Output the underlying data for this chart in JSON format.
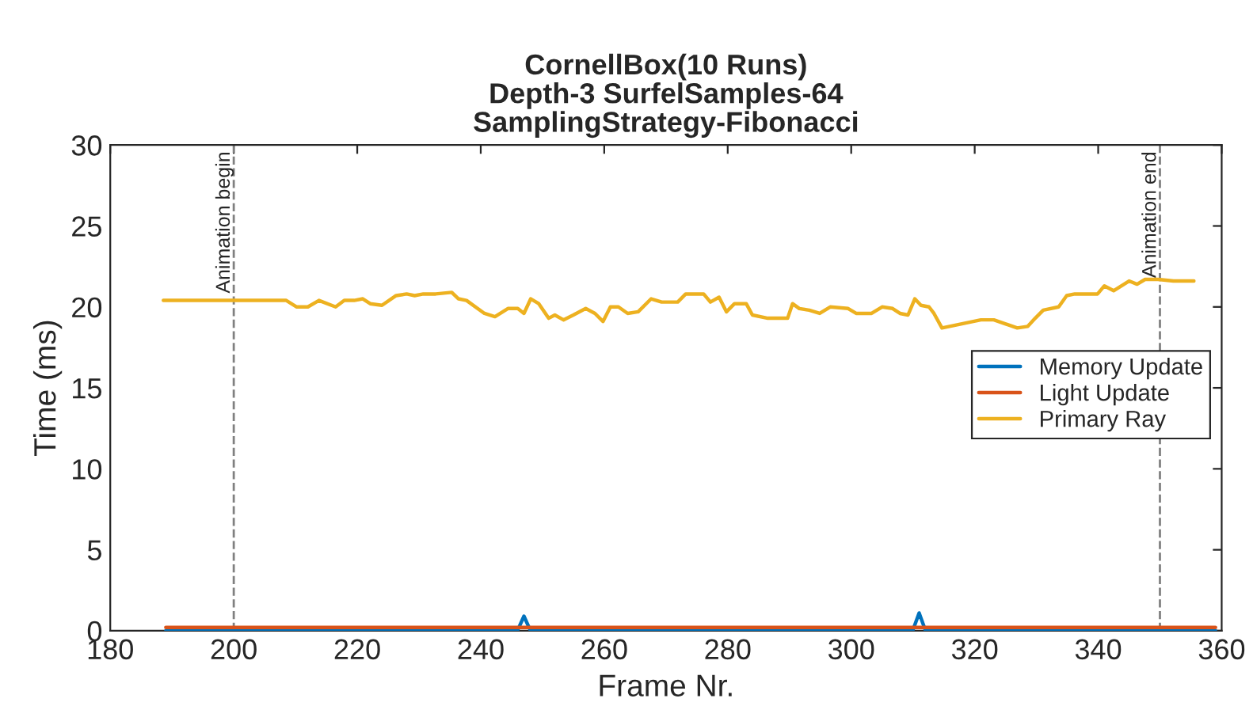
{
  "chart_data": {
    "type": "line",
    "title": "CornellBox(10 Runs)\nDepth-3 SurfelSamples-64\nSamplingStrategy-Fibonacci",
    "xlabel": "Frame Nr.",
    "ylabel": "Time (ms)",
    "xlim": [
      180,
      360
    ],
    "xticks": [
      180,
      200,
      220,
      240,
      260,
      280,
      300,
      320,
      340,
      360
    ],
    "ylim": [
      0,
      30
    ],
    "yticks": [
      0,
      5,
      10,
      15,
      20,
      25,
      30
    ],
    "grid": false,
    "legend": "right",
    "line_style": "solid",
    "marker": "none",
    "ref_lines": [
      {
        "axis": "x",
        "value": 200,
        "label": "Animation begin",
        "color": "#808080",
        "line_style": "dashed"
      },
      {
        "axis": "x",
        "value": 350,
        "label": "Animation end",
        "color": "#808080",
        "line_style": "dashed"
      }
    ],
    "series": [
      {
        "name": "Memory Update",
        "color": "#0072bd",
        "x": [
          189,
          200,
          201,
          246,
          247,
          248,
          310,
          311,
          312,
          350,
          351,
          359
        ],
        "values": [
          0,
          0,
          0.05,
          0.05,
          0.9,
          0.05,
          0.05,
          1.1,
          0.05,
          0.05,
          0,
          0
        ]
      },
      {
        "name": "Light Update",
        "color": "#d95319",
        "x": [
          189,
          359
        ],
        "values": [
          0.2,
          0.2
        ]
      },
      {
        "name": "Primary Ray",
        "color": "#edb120",
        "x": [
          188.6,
          205.2,
          207,
          208.5,
          210.2,
          212,
          213.8,
          216.5,
          217.9,
          219.5,
          220.9,
          222.1,
          224,
          226.3,
          228,
          229.3,
          230.7,
          232.7,
          235.3,
          236.4,
          237.7,
          240.6,
          242.3,
          244.4,
          246,
          247,
          248.1,
          249.4,
          251,
          252,
          253.4,
          255,
          257,
          258.5,
          259.8,
          261,
          262.3,
          263.8,
          265.5,
          267.6,
          269.3,
          271.9,
          273.2,
          276.1,
          277.2,
          278.6,
          279.8,
          281.1,
          283,
          284,
          286.5,
          289.7,
          290.5,
          291.6,
          293.2,
          294.9,
          296.6,
          299.5,
          300.8,
          303.3,
          305,
          306.7,
          307.9,
          309.2,
          310.3,
          311.3,
          312.6,
          313.4,
          314.7,
          321,
          323.1,
          326.9,
          328.6,
          329.8,
          331.1,
          333.6,
          334.9,
          336.2,
          339.9,
          341,
          342.5,
          345,
          346.3,
          347.6,
          349.7,
          352.2,
          355.5
        ],
        "values": [
          20.4,
          20.4,
          20.4,
          20.4,
          20.0,
          20.0,
          20.4,
          20.0,
          20.4,
          20.4,
          20.5,
          20.2,
          20.1,
          20.7,
          20.8,
          20.7,
          20.8,
          20.8,
          20.9,
          20.5,
          20.4,
          19.6,
          19.4,
          19.9,
          19.9,
          19.6,
          20.5,
          20.2,
          19.3,
          19.5,
          19.2,
          19.5,
          19.9,
          19.6,
          19.1,
          20.0,
          20.0,
          19.6,
          19.7,
          20.5,
          20.3,
          20.3,
          20.8,
          20.8,
          20.3,
          20.6,
          19.7,
          20.2,
          20.2,
          19.5,
          19.3,
          19.3,
          20.2,
          19.9,
          19.8,
          19.6,
          20.0,
          19.9,
          19.6,
          19.6,
          20.0,
          19.9,
          19.6,
          19.5,
          20.5,
          20.1,
          20.0,
          19.6,
          18.7,
          19.2,
          19.2,
          18.7,
          18.8,
          19.3,
          19.8,
          20.0,
          20.7,
          20.8,
          20.8,
          21.3,
          21.0,
          21.6,
          21.4,
          21.7,
          21.7,
          21.6,
          21.6
        ]
      }
    ]
  }
}
